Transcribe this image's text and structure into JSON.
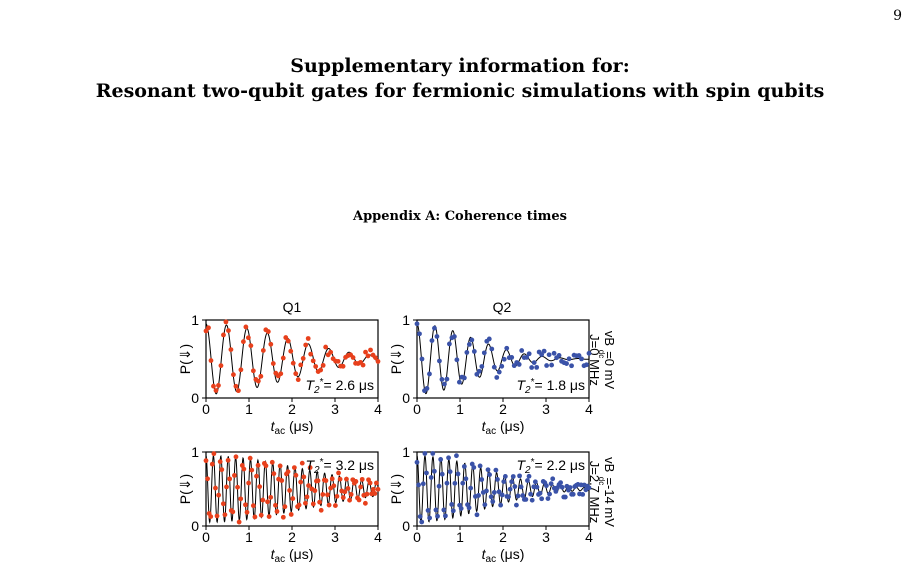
{
  "page_number": "9",
  "title_line1": "Supplementary information for:",
  "title_line2": "Resonant two-qubit gates for fermionic simulations with spin qubits",
  "section_heading": "Appendix A: Coherence times",
  "figure": {
    "column_labels": [
      "Q1",
      "Q2"
    ],
    "row_labels": [
      {
        "line1": "vB  =0 mV",
        "sub": "dc",
        "line2": "J=0 MHz"
      },
      {
        "line1": "vB  =-14 mV",
        "sub": "dc",
        "line2": "J=2.7 MHz"
      }
    ],
    "ylabel": "P(⇓)",
    "xlabel_main": "t",
    "xlabel_sub": "ac",
    "xlabel_unit": " (μs)",
    "xticks": [
      "0",
      "1",
      "2",
      "3",
      "4"
    ],
    "yticks": [
      "0",
      "1"
    ]
  },
  "chart_data": [
    {
      "type": "scatter",
      "panel": "top-left",
      "qubit": "Q1",
      "T2_label": "= 2.6 μs",
      "T2": 2.6,
      "freq": 2.1,
      "decay": 2.6,
      "xlim": [
        0,
        4
      ],
      "ylim": [
        0,
        1
      ],
      "color": "#e8401c",
      "legend": "bottom-right"
    },
    {
      "type": "scatter",
      "panel": "top-right",
      "qubit": "Q2",
      "T2_label": "= 1.8 μs",
      "T2": 1.8,
      "freq": 2.4,
      "decay": 1.8,
      "xlim": [
        0,
        4
      ],
      "ylim": [
        0,
        1
      ],
      "color": "#3a52a8",
      "legend": "bottom-right"
    },
    {
      "type": "scatter",
      "panel": "bottom-left",
      "qubit": "Q1",
      "T2_label": "= 3.2 μs",
      "T2": 3.2,
      "freq": 5.8,
      "decay": 3.2,
      "xlim": [
        0,
        4
      ],
      "ylim": [
        0,
        1
      ],
      "color": "#e8401c",
      "legend": "top-right"
    },
    {
      "type": "scatter",
      "panel": "bottom-right",
      "qubit": "Q2",
      "T2_label": "= 2.2 μs",
      "T2": 2.2,
      "freq": 5.4,
      "decay": 2.2,
      "xlim": [
        0,
        4
      ],
      "ylim": [
        0,
        1
      ],
      "color": "#3a52a8",
      "legend": "top-right"
    }
  ]
}
